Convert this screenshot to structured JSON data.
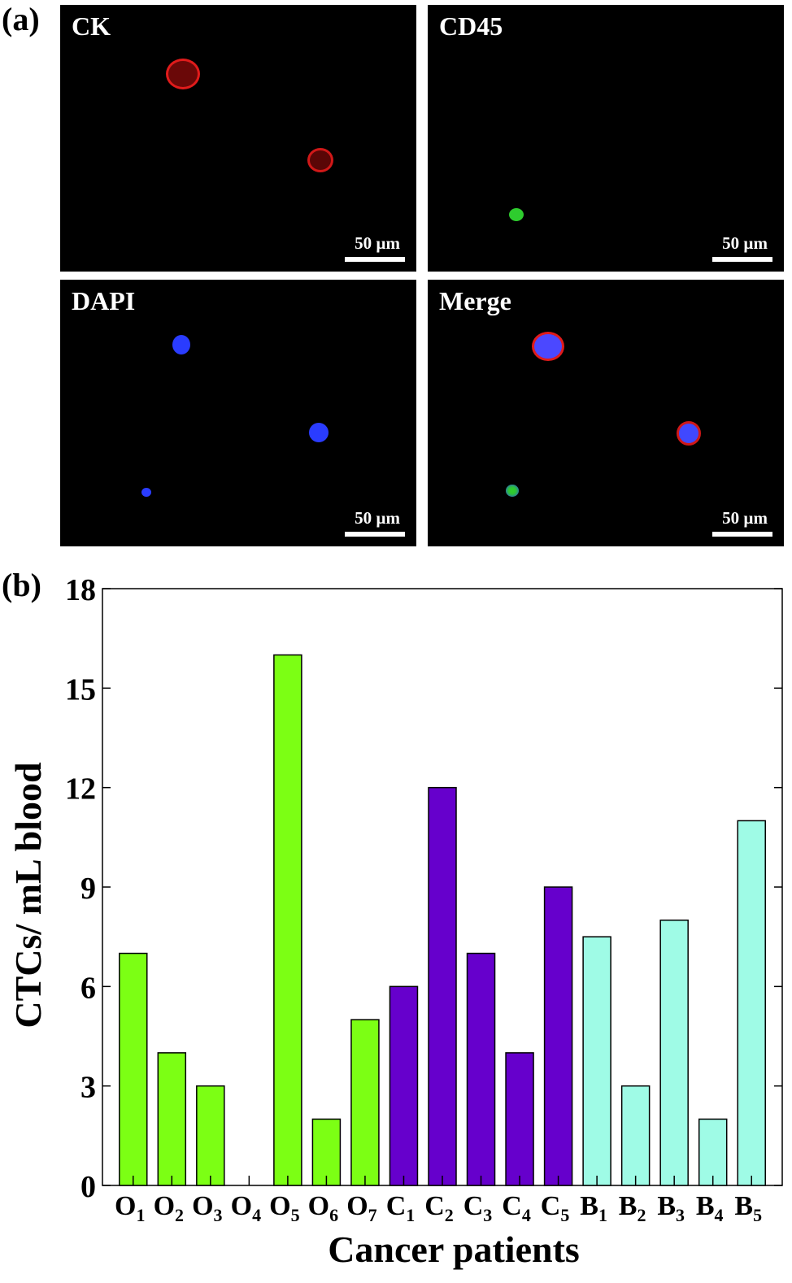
{
  "figure": {
    "label_a": "(a)",
    "label_b": "(b)",
    "scale_label": "50 µm",
    "panels": [
      {
        "title": "CK"
      },
      {
        "title": "CD45"
      },
      {
        "title": "DAPI"
      },
      {
        "title": "Merge"
      }
    ]
  },
  "colors": {
    "ck_red": "#e01b1b",
    "cd45_green": "#2ecc2e",
    "dapi_blue": "#2a3cff",
    "bar_O": "#7cff14",
    "bar_C": "#6600cc",
    "bar_B": "#9ffbe6"
  },
  "chart_data": {
    "type": "bar",
    "title": "",
    "xlabel": "Cancer patients",
    "ylabel": "CTCs/ mL blood",
    "ylim": [
      0,
      18
    ],
    "yticks": [
      "0",
      "3",
      "6",
      "9",
      "12",
      "15",
      "18"
    ],
    "categories": [
      {
        "letter": "O",
        "sub": "1"
      },
      {
        "letter": "O",
        "sub": "2"
      },
      {
        "letter": "O",
        "sub": "3"
      },
      {
        "letter": "O",
        "sub": "4"
      },
      {
        "letter": "O",
        "sub": "5"
      },
      {
        "letter": "O",
        "sub": "6"
      },
      {
        "letter": "O",
        "sub": "7"
      },
      {
        "letter": "C",
        "sub": "1"
      },
      {
        "letter": "C",
        "sub": "2"
      },
      {
        "letter": "C",
        "sub": "3"
      },
      {
        "letter": "C",
        "sub": "4"
      },
      {
        "letter": "C",
        "sub": "5"
      },
      {
        "letter": "B",
        "sub": "1"
      },
      {
        "letter": "B",
        "sub": "2"
      },
      {
        "letter": "B",
        "sub": "3"
      },
      {
        "letter": "B",
        "sub": "4"
      },
      {
        "letter": "B",
        "sub": "5"
      }
    ],
    "values": [
      7,
      4,
      3,
      0,
      16,
      2,
      5,
      6,
      12,
      7,
      4,
      9,
      7.5,
      3,
      8,
      2,
      11
    ],
    "groups": [
      "O",
      "O",
      "O",
      "O",
      "O",
      "O",
      "O",
      "C",
      "C",
      "C",
      "C",
      "C",
      "B",
      "B",
      "B",
      "B",
      "B"
    ],
    "grid": false,
    "legend": "none"
  }
}
